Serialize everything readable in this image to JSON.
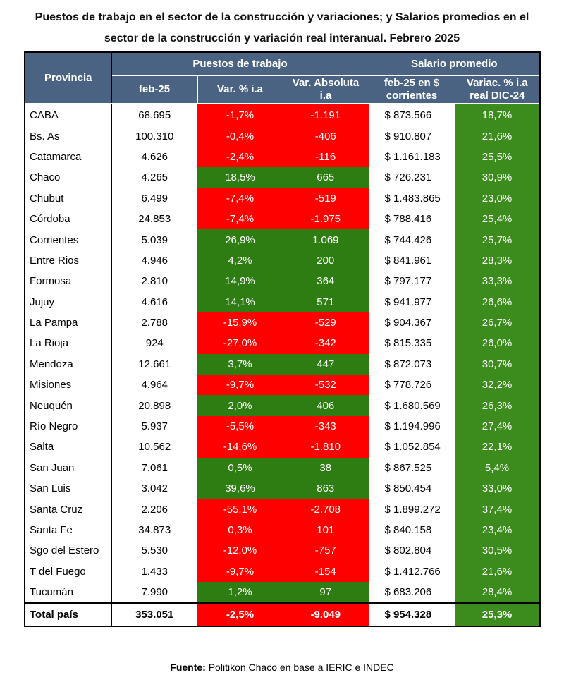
{
  "title": {
    "line1": "Puestos de trabajo en el sector de la construcción y variaciones; y Salarios promedios en el",
    "line2": "sector de la construcción y variación real interanual. Febrero 2025"
  },
  "header": {
    "provincia": "Provincia",
    "puestos_group": "Puestos de trabajo",
    "salario_group": "Salario promedio",
    "feb25": "feb-25",
    "var_pct": "Var. % i.a",
    "var_abs_l1": "Var. Absoluta",
    "var_abs_l2": "i.a",
    "sal_l1": "feb-25 en $",
    "sal_l2": "corrientes",
    "real_l1": "Variac. % i.a",
    "real_l2": "real DIC-24"
  },
  "colors": {
    "header_bg": "#4a6382",
    "negative": "#ff0000",
    "positive": "#2e7d12",
    "salary_change": "#3c8c1d"
  },
  "rows": [
    {
      "provincia": "CABA",
      "puestos": "68.695",
      "var_pct": "-1,7%",
      "var_abs": "-1.191",
      "salario": "$ 873.566",
      "var_real": "18,7%",
      "sign": "neg"
    },
    {
      "provincia": "Bs. As",
      "puestos": "100.310",
      "var_pct": "-0,4%",
      "var_abs": "-406",
      "salario": "$ 910.807",
      "var_real": "21,6%",
      "sign": "neg"
    },
    {
      "provincia": "Catamarca",
      "puestos": "4.626",
      "var_pct": "-2,4%",
      "var_abs": "-116",
      "salario": "$ 1.161.183",
      "var_real": "25,5%",
      "sign": "neg"
    },
    {
      "provincia": "Chaco",
      "puestos": "4.265",
      "var_pct": "18,5%",
      "var_abs": "665",
      "salario": "$ 726.231",
      "var_real": "30,9%",
      "sign": "pos"
    },
    {
      "provincia": "Chubut",
      "puestos": "6.499",
      "var_pct": "-7,4%",
      "var_abs": "-519",
      "salario": "$ 1.483.865",
      "var_real": "23,0%",
      "sign": "neg"
    },
    {
      "provincia": "Córdoba",
      "puestos": "24.853",
      "var_pct": "-7,4%",
      "var_abs": "-1.975",
      "salario": "$ 788.416",
      "var_real": "25,4%",
      "sign": "neg"
    },
    {
      "provincia": "Corrientes",
      "puestos": "5.039",
      "var_pct": "26,9%",
      "var_abs": "1.069",
      "salario": "$ 744.426",
      "var_real": "25,7%",
      "sign": "pos"
    },
    {
      "provincia": "Entre Rios",
      "puestos": "4.946",
      "var_pct": "4,2%",
      "var_abs": "200",
      "salario": "$ 841.961",
      "var_real": "28,3%",
      "sign": "pos"
    },
    {
      "provincia": "Formosa",
      "puestos": "2.810",
      "var_pct": "14,9%",
      "var_abs": "364",
      "salario": "$ 797.177",
      "var_real": "33,3%",
      "sign": "pos"
    },
    {
      "provincia": "Jujuy",
      "puestos": "4.616",
      "var_pct": "14,1%",
      "var_abs": "571",
      "salario": "$ 941.977",
      "var_real": "26,6%",
      "sign": "pos"
    },
    {
      "provincia": "La Pampa",
      "puestos": "2.788",
      "var_pct": "-15,9%",
      "var_abs": "-529",
      "salario": "$ 904.367",
      "var_real": "26,7%",
      "sign": "neg"
    },
    {
      "provincia": "La Rioja",
      "puestos": "924",
      "var_pct": "-27,0%",
      "var_abs": "-342",
      "salario": "$ 815.335",
      "var_real": "26,0%",
      "sign": "neg"
    },
    {
      "provincia": "Mendoza",
      "puestos": "12.661",
      "var_pct": "3,7%",
      "var_abs": "447",
      "salario": "$ 872.073",
      "var_real": "30,7%",
      "sign": "pos"
    },
    {
      "provincia": "Misiones",
      "puestos": "4.964",
      "var_pct": "-9,7%",
      "var_abs": "-532",
      "salario": "$ 778.726",
      "var_real": "32,2%",
      "sign": "neg"
    },
    {
      "provincia": "Neuquén",
      "puestos": "20.898",
      "var_pct": "2,0%",
      "var_abs": "406",
      "salario": "$ 1.680.569",
      "var_real": "26,3%",
      "sign": "pos"
    },
    {
      "provincia": "Río Negro",
      "puestos": "5.937",
      "var_pct": "-5,5%",
      "var_abs": "-343",
      "salario": "$ 1.194.996",
      "var_real": "27,4%",
      "sign": "neg"
    },
    {
      "provincia": "Salta",
      "puestos": "10.562",
      "var_pct": "-14,6%",
      "var_abs": "-1.810",
      "salario": "$ 1.052.854",
      "var_real": "22,1%",
      "sign": "neg"
    },
    {
      "provincia": "San Juan",
      "puestos": "7.061",
      "var_pct": "0,5%",
      "var_abs": "38",
      "salario": "$ 867.525",
      "var_real": "5,4%",
      "sign": "pos"
    },
    {
      "provincia": "San Luis",
      "puestos": "3.042",
      "var_pct": "39,6%",
      "var_abs": "863",
      "salario": "$ 850.454",
      "var_real": "33,0%",
      "sign": "pos"
    },
    {
      "provincia": "Santa Cruz",
      "puestos": "2.206",
      "var_pct": "-55,1%",
      "var_abs": "-2.708",
      "salario": "$ 1.899.272",
      "var_real": "37,4%",
      "sign": "neg"
    },
    {
      "provincia": "Santa Fe",
      "puestos": "34.873",
      "var_pct": "0,3%",
      "var_abs": "101",
      "salario": "$ 840.158",
      "var_real": "23,4%",
      "sign": "neg"
    },
    {
      "provincia": "Sgo del Estero",
      "puestos": "5.530",
      "var_pct": "-12,0%",
      "var_abs": "-757",
      "salario": "$ 802.804",
      "var_real": "30,5%",
      "sign": "neg"
    },
    {
      "provincia": "T del Fuego",
      "puestos": "1.433",
      "var_pct": "-9,7%",
      "var_abs": "-154",
      "salario": "$ 1.412.766",
      "var_real": "21,6%",
      "sign": "neg"
    },
    {
      "provincia": "Tucumán",
      "puestos": "7.990",
      "var_pct": "1,2%",
      "var_abs": "97",
      "salario": "$ 683.206",
      "var_real": "28,4%",
      "sign": "pos"
    }
  ],
  "total": {
    "provincia": "Total país",
    "puestos": "353.051",
    "var_pct": "-2,5%",
    "var_abs": "-9.049",
    "salario": "$ 954.328",
    "var_real": "25,3%",
    "sign": "neg"
  },
  "source": {
    "label": "Fuente:",
    "text": " Politikon Chaco en base a IERIC e INDEC"
  }
}
